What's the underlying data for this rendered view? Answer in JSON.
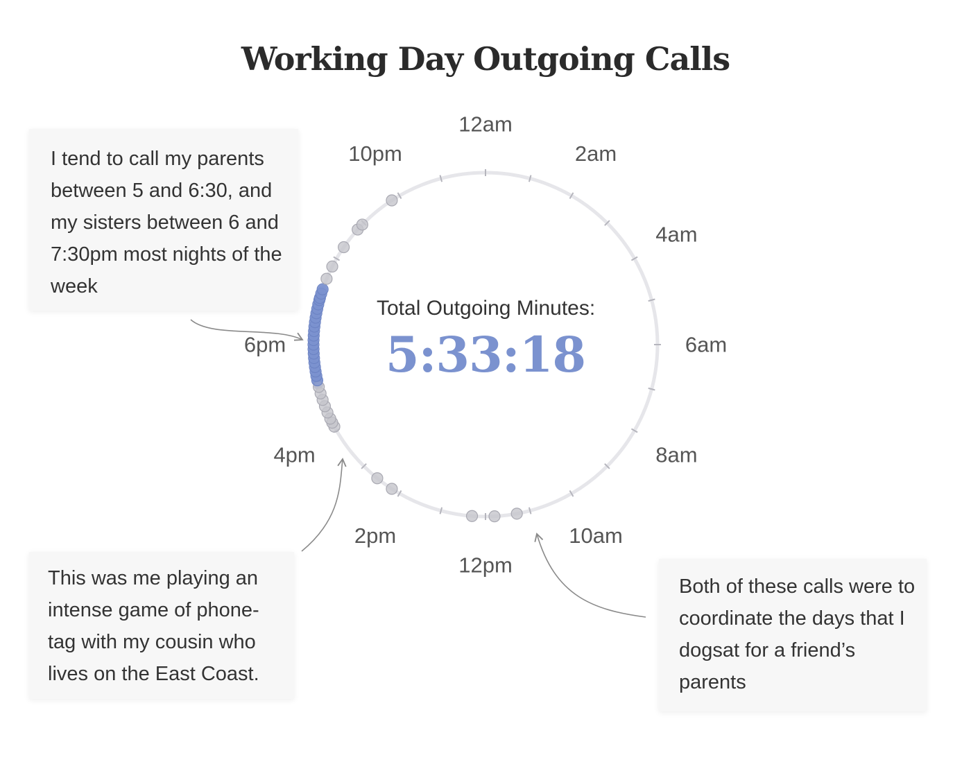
{
  "title": "Working Day Outgoing Calls",
  "total": {
    "label": "Total Outgoing Minutes:",
    "value": "5:33:18"
  },
  "colors": {
    "highlight": "#7b92cf",
    "call_dot": "#c6c6cc",
    "ring": "#e6e6ea",
    "text": "#333333",
    "arrow": "#8a8a8a"
  },
  "annotations": {
    "parents": "I tend to call my parents between 5 and 6:30, and my sisters between 6 and 7:30pm most nights of the week",
    "cousin": "This was me playing an intense game of phone-tag with my cousin who lives on the East Coast.",
    "dogsat": "Both of these calls were to coordinate the days that I dogsat for a friend’s parents"
  },
  "chart_data": {
    "type": "scatter",
    "layout": "radial-24h-clock",
    "title": "Working Day Outgoing Calls",
    "hour_labels": [
      "12am",
      "2am",
      "4am",
      "6am",
      "8am",
      "10am",
      "12pm",
      "2pm",
      "4pm",
      "6pm",
      "10pm"
    ],
    "hour_label_values": [
      0,
      2,
      4,
      6,
      8,
      10,
      12,
      14,
      16,
      18,
      22
    ],
    "call_times_hours": [
      11.3,
      11.8,
      12.3,
      14.2,
      14.6,
      16.1,
      16.2,
      16.3,
      16.45,
      16.6,
      16.75,
      16.9,
      17.05,
      17.2,
      17.3,
      17.4,
      17.5,
      17.6,
      17.7,
      17.8,
      17.9,
      18.0,
      18.1,
      18.2,
      18.3,
      18.4,
      18.5,
      18.6,
      18.7,
      18.8,
      18.9,
      19.0,
      19.05,
      19.15,
      19.25,
      19.5,
      19.8,
      20.3,
      20.8,
      20.95,
      21.8
    ],
    "highlight_range_hours": [
      17.1,
      19.25
    ],
    "total_outgoing_minutes": "5:33:18"
  }
}
